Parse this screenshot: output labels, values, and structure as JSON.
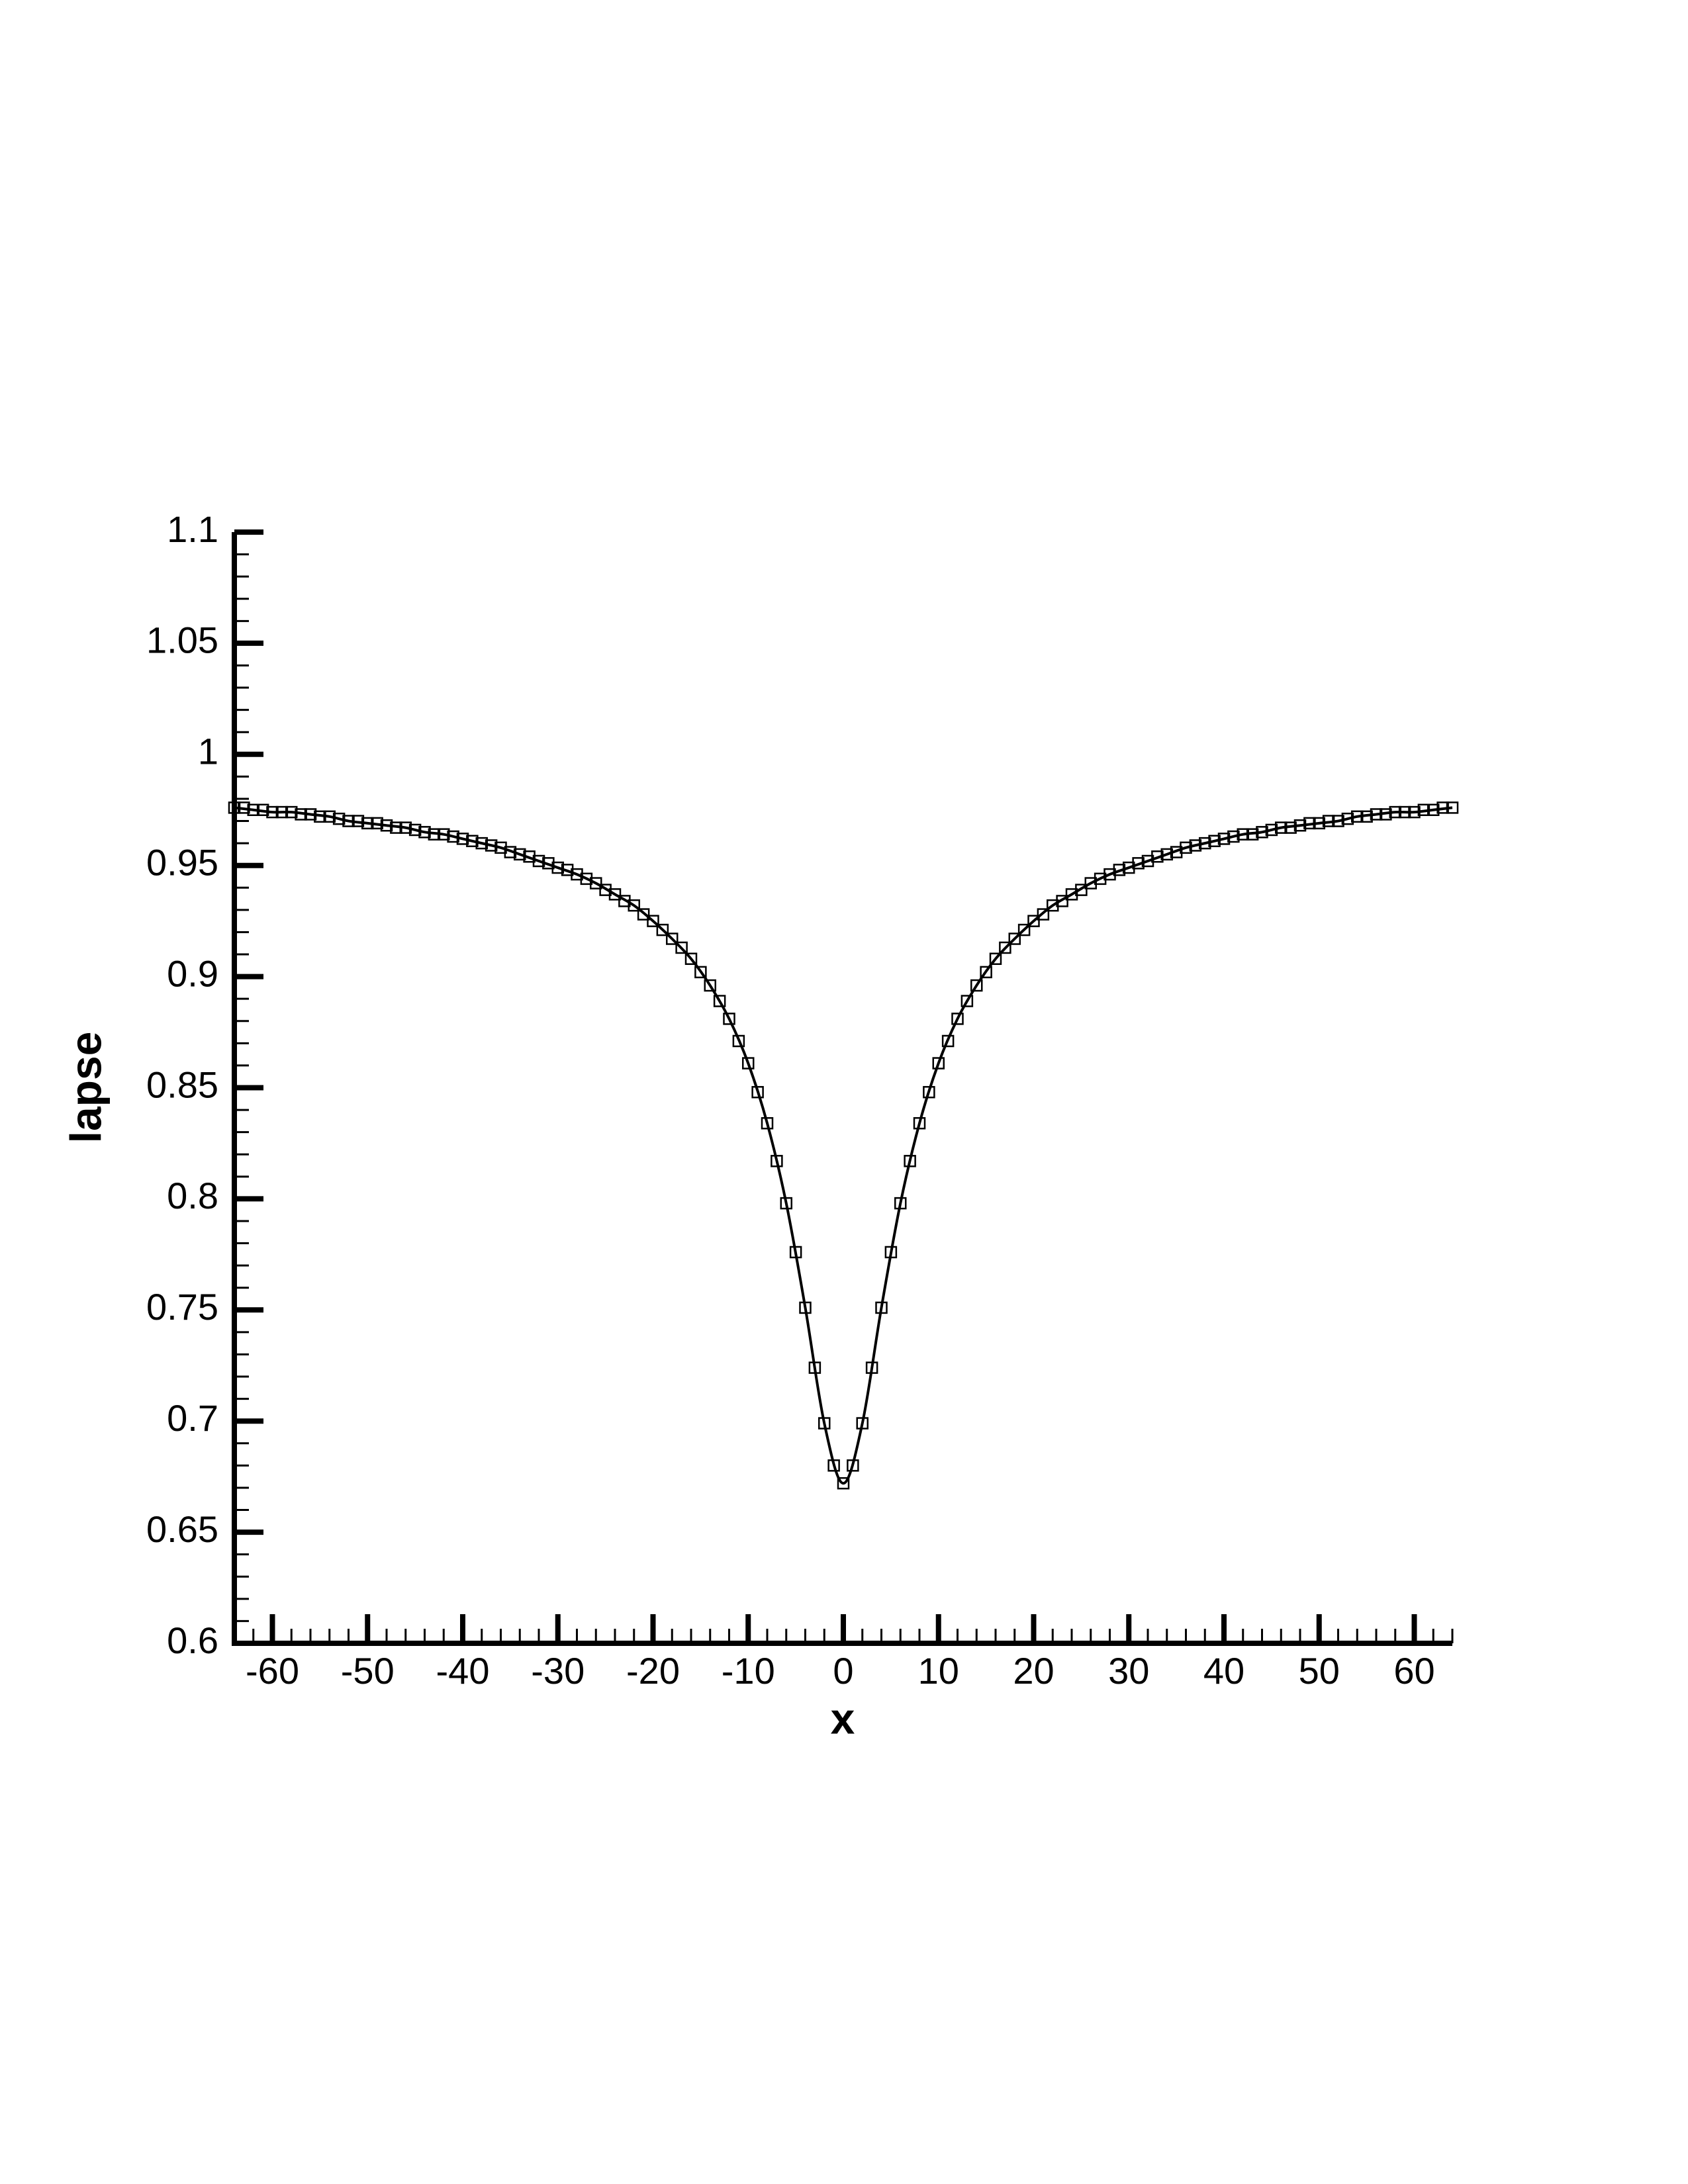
{
  "chart_data": {
    "type": "line",
    "xlabel": "x",
    "ylabel": "lapse",
    "xlim": [
      -64,
      64
    ],
    "ylim": [
      0.6,
      1.1
    ],
    "xticks": [
      -60,
      -50,
      -40,
      -30,
      -20,
      -10,
      0,
      10,
      20,
      30,
      40,
      50,
      60
    ],
    "yticks": [
      0.6,
      0.65,
      0.7,
      0.75,
      0.8,
      0.85,
      0.9,
      0.95,
      1,
      1.05,
      1.1
    ],
    "minor_ticks": true,
    "grid": false,
    "series": [
      {
        "color": "#000000",
        "marker": "none",
        "x": [
          -64,
          -62,
          -60,
          -58,
          -56,
          -54,
          -52,
          -50,
          -48,
          -46,
          -44,
          -42,
          -40,
          -38,
          -36,
          -34,
          -32,
          -30,
          -28,
          -26,
          -24,
          -22,
          -20,
          -18,
          -16,
          -14,
          -12,
          -10,
          -8,
          -6,
          -4,
          -2,
          0,
          2,
          4,
          6,
          8,
          10,
          12,
          14,
          16,
          18,
          20,
          22,
          24,
          26,
          28,
          30,
          32,
          34,
          36,
          38,
          40,
          42,
          44,
          46,
          48,
          50,
          52,
          54,
          56,
          58,
          60,
          62,
          64
        ],
        "values": [
          0.976,
          0.975,
          0.974,
          0.974,
          0.973,
          0.972,
          0.97,
          0.969,
          0.968,
          0.967,
          0.965,
          0.964,
          0.962,
          0.96,
          0.958,
          0.955,
          0.952,
          0.949,
          0.946,
          0.942,
          0.937,
          0.932,
          0.925,
          0.917,
          0.908,
          0.896,
          0.881,
          0.861,
          0.834,
          0.798,
          0.751,
          0.699,
          0.672,
          0.699,
          0.751,
          0.798,
          0.834,
          0.861,
          0.881,
          0.896,
          0.908,
          0.917,
          0.925,
          0.932,
          0.937,
          0.942,
          0.946,
          0.949,
          0.952,
          0.955,
          0.958,
          0.96,
          0.962,
          0.964,
          0.965,
          0.967,
          0.968,
          0.969,
          0.97,
          0.972,
          0.973,
          0.974,
          0.974,
          0.975,
          0.976
        ]
      },
      {
        "color": "#000000",
        "marker": "square",
        "x": [
          -64,
          -63,
          -62,
          -61,
          -60,
          -59,
          -58,
          -57,
          -56,
          -55,
          -54,
          -53,
          -52,
          -51,
          -50,
          -49,
          -48,
          -47,
          -46,
          -45,
          -44,
          -43,
          -42,
          -41,
          -40,
          -39,
          -38,
          -37,
          -36,
          -35,
          -34,
          -33,
          -32,
          -31,
          -30,
          -29,
          -28,
          -27,
          -26,
          -25,
          -24,
          -23,
          -22,
          -21,
          -20,
          -19,
          -18,
          -17,
          -16,
          -15,
          -14,
          -13,
          -12,
          -11,
          -10,
          -9,
          -8,
          -7,
          -6,
          -5,
          -4,
          -3,
          -2,
          -1,
          0,
          1,
          2,
          3,
          4,
          5,
          6,
          7,
          8,
          9,
          10,
          11,
          12,
          13,
          14,
          15,
          16,
          17,
          18,
          19,
          20,
          21,
          22,
          23,
          24,
          25,
          26,
          27,
          28,
          29,
          30,
          31,
          32,
          33,
          34,
          35,
          36,
          37,
          38,
          39,
          40,
          41,
          42,
          43,
          44,
          45,
          46,
          47,
          48,
          49,
          50,
          51,
          52,
          53,
          54,
          55,
          56,
          57,
          58,
          59,
          60,
          61,
          62,
          63,
          64
        ],
        "values": [
          0.976,
          0.976,
          0.975,
          0.975,
          0.974,
          0.974,
          0.974,
          0.973,
          0.973,
          0.972,
          0.972,
          0.971,
          0.97,
          0.97,
          0.969,
          0.969,
          0.968,
          0.967,
          0.967,
          0.966,
          0.965,
          0.964,
          0.964,
          0.963,
          0.962,
          0.961,
          0.96,
          0.959,
          0.958,
          0.956,
          0.955,
          0.954,
          0.952,
          0.951,
          0.949,
          0.948,
          0.946,
          0.944,
          0.942,
          0.939,
          0.937,
          0.934,
          0.932,
          0.928,
          0.925,
          0.921,
          0.917,
          0.913,
          0.908,
          0.902,
          0.896,
          0.889,
          0.881,
          0.871,
          0.861,
          0.848,
          0.834,
          0.817,
          0.798,
          0.776,
          0.751,
          0.724,
          0.699,
          0.68,
          0.672,
          0.68,
          0.699,
          0.724,
          0.751,
          0.776,
          0.798,
          0.817,
          0.834,
          0.848,
          0.861,
          0.871,
          0.881,
          0.889,
          0.896,
          0.902,
          0.908,
          0.913,
          0.917,
          0.921,
          0.925,
          0.928,
          0.932,
          0.934,
          0.937,
          0.939,
          0.942,
          0.944,
          0.946,
          0.948,
          0.949,
          0.951,
          0.952,
          0.954,
          0.955,
          0.956,
          0.958,
          0.959,
          0.96,
          0.961,
          0.962,
          0.963,
          0.964,
          0.964,
          0.965,
          0.966,
          0.967,
          0.967,
          0.968,
          0.969,
          0.969,
          0.97,
          0.97,
          0.971,
          0.972,
          0.972,
          0.973,
          0.973,
          0.974,
          0.974,
          0.974,
          0.975,
          0.975,
          0.976,
          0.976
        ]
      }
    ]
  }
}
